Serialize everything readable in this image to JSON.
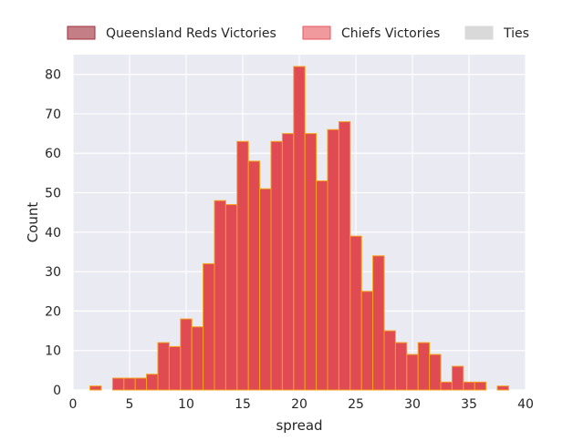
{
  "chart_data": {
    "type": "bar",
    "xlabel": "spread",
    "ylabel": "Count",
    "xlim": [
      0,
      40
    ],
    "ylim": [
      0,
      85
    ],
    "x_ticks": [
      0,
      5,
      10,
      15,
      20,
      25,
      30,
      35,
      40
    ],
    "y_ticks": [
      0,
      10,
      20,
      30,
      40,
      50,
      60,
      70,
      80
    ],
    "grid": true,
    "legend_position": "top",
    "background_color": "#eaeaf2",
    "grid_color": "#ffffff",
    "legend": [
      {
        "label": "Queensland Reds Victories",
        "color": "#a0303c"
      },
      {
        "label": "Chiefs Victories",
        "color": "#e8575c"
      },
      {
        "label": "Ties",
        "color": "#d9d9d9"
      }
    ],
    "series": [
      {
        "name": "Chiefs Victories",
        "color": "#e04a52",
        "edge_color": "#f5a21a",
        "bin_width": 1,
        "bin_starts": [
          1.5,
          2.5,
          3.5,
          4.5,
          5.5,
          6.5,
          7.5,
          8.5,
          9.5,
          10.5,
          11.5,
          12.5,
          13.5,
          14.5,
          15.5,
          16.5,
          17.5,
          18.5,
          19.5,
          20.5,
          21.5,
          22.5,
          23.5,
          24.5,
          25.5,
          26.5,
          27.5,
          28.5,
          29.5,
          30.5,
          31.5,
          32.5,
          33.5,
          34.5,
          35.5,
          36.5,
          37.5
        ],
        "values": [
          1,
          0,
          3,
          3,
          3,
          4,
          12,
          11,
          18,
          16,
          32,
          48,
          47,
          63,
          58,
          51,
          63,
          65,
          82,
          65,
          53,
          66,
          68,
          39,
          25,
          34,
          15,
          12,
          9,
          12,
          9,
          2,
          6,
          2,
          2,
          0,
          1
        ]
      }
    ]
  }
}
